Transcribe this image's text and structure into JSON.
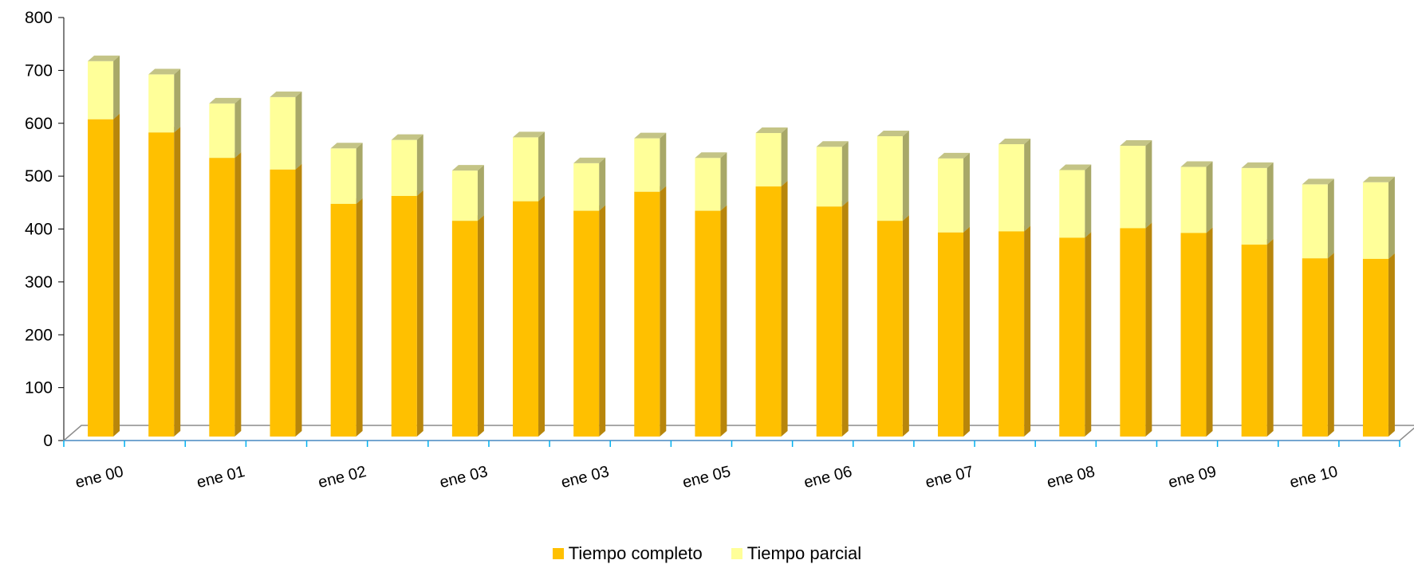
{
  "chart_data": {
    "type": "bar",
    "stacked": true,
    "categories": [
      "ene 00",
      "",
      "ene 01",
      "",
      "ene 02",
      "",
      "ene 03",
      "",
      "ene 03",
      "",
      "ene 05",
      "",
      "ene 06",
      "",
      "ene 07",
      "",
      "ene 08",
      "",
      "ene 09",
      "",
      "ene 10",
      ""
    ],
    "series": [
      {
        "name": "Tiempo completo",
        "color": "#FFC000",
        "values": [
          600,
          575,
          527,
          505,
          440,
          455,
          408,
          445,
          427,
          463,
          427,
          473,
          435,
          408,
          386,
          388,
          376,
          394,
          385,
          363,
          337,
          336
        ]
      },
      {
        "name": "Tiempo parcial",
        "color": "#FFFF99",
        "values": [
          110,
          110,
          103,
          137,
          105,
          106,
          95,
          121,
          90,
          101,
          100,
          101,
          113,
          160,
          140,
          165,
          128,
          156,
          125,
          145,
          140,
          145
        ]
      }
    ],
    "ylim": [
      0,
      800
    ],
    "yticks": [
      0,
      100,
      200,
      300,
      400,
      500,
      600,
      700,
      800
    ],
    "legend_position": "bottom",
    "grid": false
  }
}
